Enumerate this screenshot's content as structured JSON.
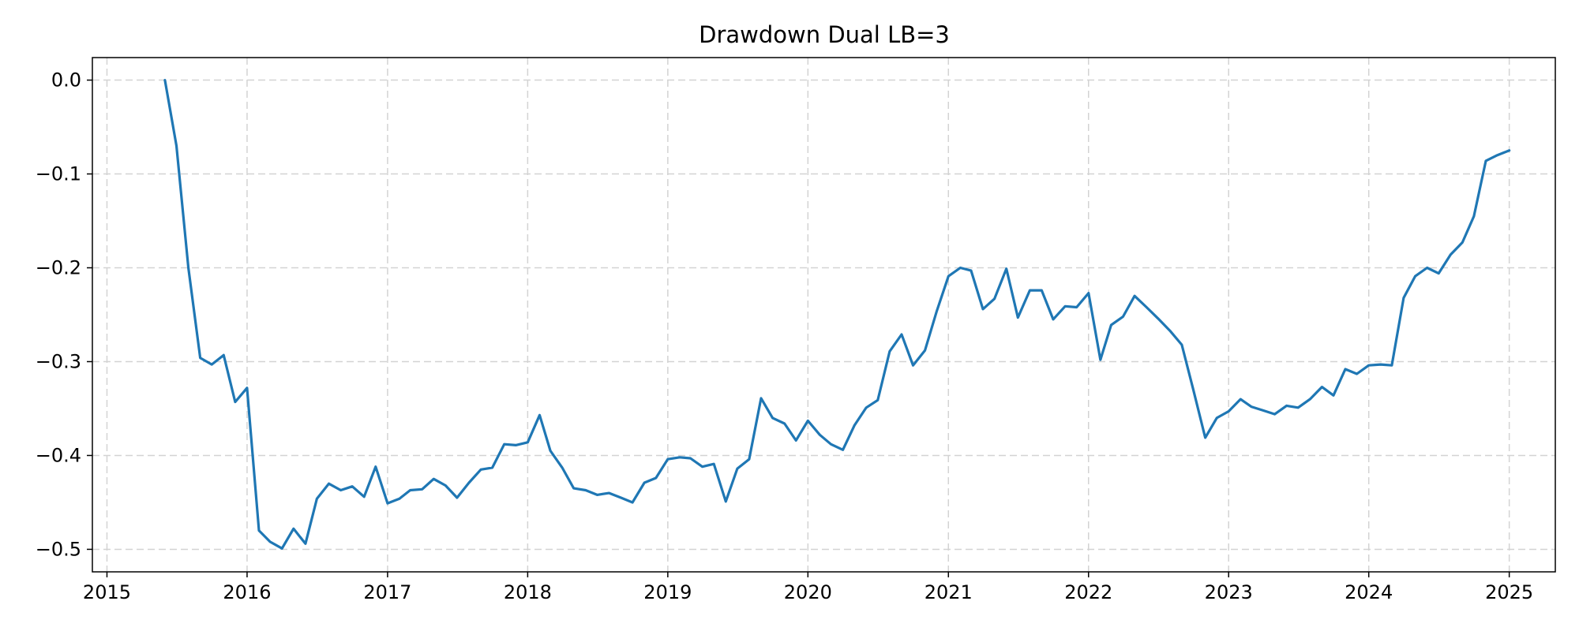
{
  "chart_data": {
    "type": "line",
    "title": "Drawdown Dual LB=3",
    "xlabel": "",
    "ylabel": "",
    "xlim": [
      "2014-11-24",
      "2025-05-01"
    ],
    "ylim": [
      -0.524,
      0.024
    ],
    "x_ticks": [
      "2015",
      "2016",
      "2017",
      "2018",
      "2019",
      "2020",
      "2021",
      "2022",
      "2023",
      "2024",
      "2025"
    ],
    "y_ticks": [
      0.0,
      -0.1,
      -0.2,
      -0.3,
      -0.4,
      -0.5
    ],
    "y_tick_labels": [
      "0.0",
      "−0.1",
      "−0.2",
      "−0.3",
      "−0.4",
      "−0.5"
    ],
    "grid": true,
    "color": "#1f77b4",
    "series": [
      {
        "x": [
          "2015-06-01",
          "2015-07-01",
          "2015-08-01",
          "2015-09-01",
          "2015-10-01",
          "2015-11-01",
          "2015-12-01",
          "2016-01-01",
          "2016-02-01",
          "2016-03-01",
          "2016-04-01",
          "2016-05-01",
          "2016-06-01",
          "2016-07-01",
          "2016-08-01",
          "2016-09-01",
          "2016-10-01",
          "2016-11-01",
          "2016-12-01",
          "2017-01-01",
          "2017-02-01",
          "2017-03-01",
          "2017-04-01",
          "2017-05-01",
          "2017-06-01",
          "2017-07-01",
          "2017-08-01",
          "2017-09-01",
          "2017-10-01",
          "2017-11-01",
          "2017-12-01",
          "2018-01-01",
          "2018-02-01",
          "2018-03-01",
          "2018-04-01",
          "2018-05-01",
          "2018-06-01",
          "2018-07-01",
          "2018-08-01",
          "2018-09-01",
          "2018-10-01",
          "2018-11-01",
          "2018-12-01",
          "2019-01-01",
          "2019-02-01",
          "2019-03-01",
          "2019-04-01",
          "2019-05-01",
          "2019-06-01",
          "2019-07-01",
          "2019-08-01",
          "2019-09-01",
          "2019-10-01",
          "2019-11-01",
          "2019-12-01",
          "2020-01-01",
          "2020-02-01",
          "2020-03-01",
          "2020-04-01",
          "2020-05-01",
          "2020-06-01",
          "2020-07-01",
          "2020-08-01",
          "2020-09-01",
          "2020-10-01",
          "2020-11-01",
          "2020-12-01",
          "2021-01-01",
          "2021-02-01",
          "2021-03-01",
          "2021-04-01",
          "2021-05-01",
          "2021-06-01",
          "2021-07-01",
          "2021-08-01",
          "2021-09-01",
          "2021-10-01",
          "2021-11-01",
          "2021-12-01",
          "2022-01-01",
          "2022-02-01",
          "2022-03-01",
          "2022-04-01",
          "2022-05-01",
          "2022-06-01",
          "2022-07-01",
          "2022-08-01",
          "2022-09-01",
          "2022-10-01",
          "2022-11-01",
          "2022-12-01",
          "2023-01-01",
          "2023-02-01",
          "2023-03-01",
          "2023-04-01",
          "2023-05-01",
          "2023-06-01",
          "2023-07-01",
          "2023-08-01",
          "2023-09-01",
          "2023-10-01",
          "2023-11-01",
          "2023-12-01",
          "2024-01-01",
          "2024-02-01",
          "2024-03-01",
          "2024-04-01",
          "2024-05-01",
          "2024-06-01",
          "2024-07-01",
          "2024-08-01",
          "2024-09-01",
          "2024-10-01",
          "2024-11-01",
          "2024-12-01",
          "2025-01-01"
        ],
        "y": [
          0.0,
          -0.07,
          -0.2,
          -0.296,
          -0.303,
          -0.293,
          -0.343,
          -0.328,
          -0.48,
          -0.492,
          -0.499,
          -0.478,
          -0.494,
          -0.446,
          -0.43,
          -0.437,
          -0.433,
          -0.444,
          -0.412,
          -0.451,
          -0.446,
          -0.437,
          -0.436,
          -0.425,
          -0.432,
          -0.445,
          -0.429,
          -0.415,
          -0.413,
          -0.388,
          -0.389,
          -0.386,
          -0.357,
          -0.395,
          -0.413,
          -0.435,
          -0.437,
          -0.442,
          -0.44,
          -0.445,
          -0.45,
          -0.429,
          -0.424,
          -0.404,
          -0.402,
          -0.403,
          -0.412,
          -0.409,
          -0.449,
          -0.414,
          -0.404,
          -0.339,
          -0.36,
          -0.366,
          -0.384,
          -0.363,
          -0.378,
          -0.388,
          -0.394,
          -0.368,
          -0.349,
          -0.341,
          -0.289,
          -0.271,
          -0.304,
          -0.288,
          -0.247,
          -0.209,
          -0.2,
          -0.203,
          -0.244,
          -0.233,
          -0.201,
          -0.253,
          -0.224,
          -0.224,
          -0.255,
          -0.241,
          -0.242,
          -0.227,
          -0.298,
          -0.261,
          -0.252,
          -0.23,
          -0.242,
          -0.254,
          -0.267,
          -0.282,
          -0.33,
          -0.381,
          -0.36,
          -0.353,
          -0.34,
          -0.348,
          -0.352,
          -0.356,
          -0.347,
          -0.349,
          -0.34,
          -0.327,
          -0.336,
          -0.308,
          -0.313,
          -0.304,
          -0.303,
          -0.304,
          -0.232,
          -0.209,
          -0.2,
          -0.206,
          -0.186,
          -0.173,
          -0.145,
          -0.086,
          -0.08,
          -0.075
        ]
      }
    ]
  }
}
